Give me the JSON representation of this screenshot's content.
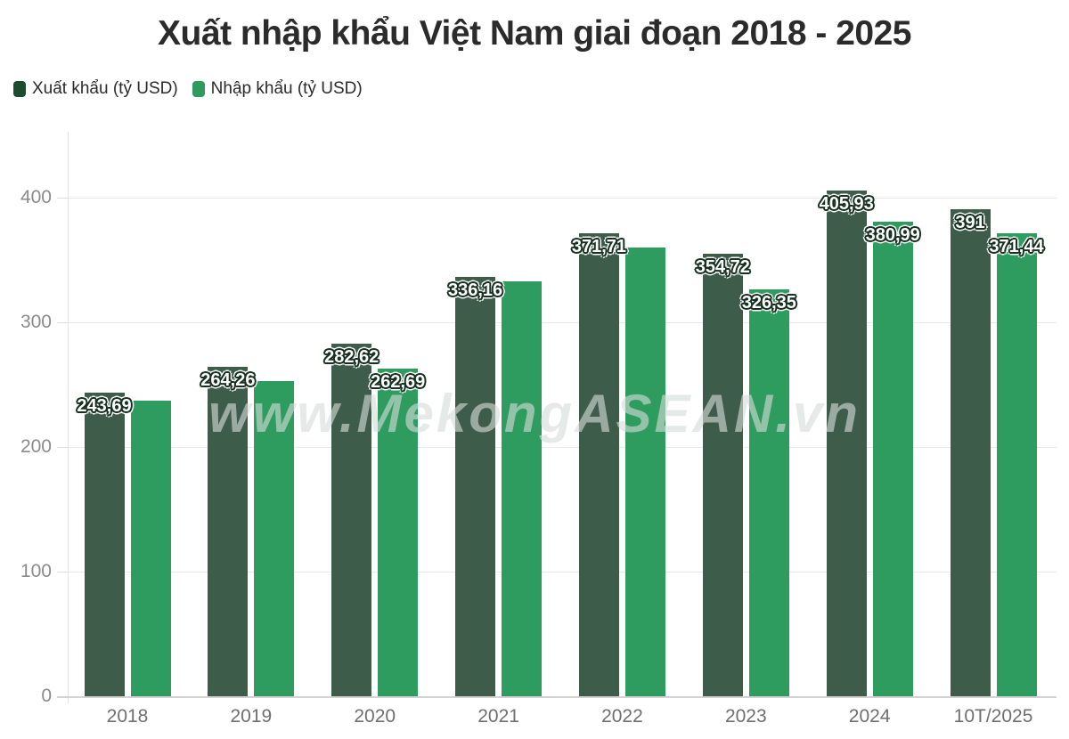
{
  "title": "Xuất nhập khẩu Việt Nam giai đoạn 2018 - 2025",
  "watermark": "www.MekongASEAN.vn",
  "legend": [
    {
      "label": "Xuất khẩu (tỷ USD)",
      "color": "#1b4c2f"
    },
    {
      "label": "Nhập khẩu (tỷ USD)",
      "color": "#2e9b5e"
    }
  ],
  "colors": {
    "export_bar": "#3d5c4a",
    "import_bar": "#2f9c5f",
    "label_text": "#ffffff",
    "label_outline": "#17301f",
    "grid": "#e9e9e9",
    "axis": "#d2d2d2",
    "ytick_text": "#8b8b8b",
    "xtick_text": "#6f6f6f"
  },
  "chart_data": {
    "type": "bar",
    "title": "Xuất nhập khẩu Việt Nam giai đoạn 2018 - 2025",
    "categories": [
      "2018",
      "2019",
      "2020",
      "2021",
      "2022",
      "2023",
      "2024",
      "10T/2025"
    ],
    "series": [
      {
        "name": "Xuất khẩu (tỷ USD)",
        "color": "#3d5c4a",
        "values": [
          243.69,
          264.26,
          282.62,
          336.16,
          371.71,
          354.72,
          405.93,
          391
        ],
        "labels": [
          "243,69",
          "264,26",
          "282,62",
          "336,16",
          "371,71",
          "354,72",
          "405,93",
          "391"
        ]
      },
      {
        "name": "Nhập khẩu (tỷ USD)",
        "color": "#2f9c5f",
        "values": [
          237,
          253,
          262.69,
          333,
          360,
          326.35,
          380.99,
          371.44
        ],
        "labels": [
          null,
          null,
          "262,69",
          null,
          null,
          "326,35",
          "380,99",
          "371,44"
        ]
      }
    ],
    "xlabel": "",
    "ylabel": "",
    "yticks": [
      0,
      100,
      200,
      300,
      400
    ],
    "ylim": [
      0,
      453
    ],
    "grid": true,
    "legend_position": "top-left"
  }
}
